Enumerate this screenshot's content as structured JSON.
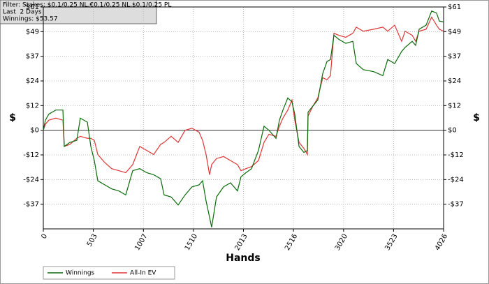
{
  "chart_data": {
    "type": "line",
    "annotations": [
      "Filter: Stakes: $0.1/0.25 NL,€0.1/0.25 NL,$0.1/0.25 PL",
      "Last  2 Days",
      "Winnings: $53.57"
    ],
    "xlabel": "Hands",
    "ylabel": "$",
    "x": [
      0,
      21,
      56,
      126,
      197,
      211,
      267,
      337,
      372,
      443,
      478,
      513,
      548,
      618,
      688,
      759,
      829,
      899,
      970,
      1040,
      1110,
      1180,
      1215,
      1286,
      1356,
      1426,
      1496,
      1567,
      1602,
      1637,
      1672,
      1693,
      1742,
      1813,
      1883,
      1953,
      1988,
      2038,
      2094,
      2164,
      2220,
      2269,
      2340,
      2375,
      2410,
      2459,
      2501,
      2529,
      2572,
      2621,
      2656,
      2663,
      2712,
      2761,
      2810,
      2853,
      2888,
      2923,
      2972,
      3042,
      3113,
      3148,
      3218,
      3323,
      3415,
      3464,
      3534,
      3604,
      3639,
      3710,
      3745,
      3780,
      3850,
      3906,
      3955,
      3983,
      4026
    ],
    "series": [
      {
        "name": "Winnings",
        "color": "#0a6a0a",
        "values": [
          0,
          5,
          8,
          10,
          10,
          -8,
          -6,
          -5,
          6,
          4,
          -8,
          -15,
          -25,
          -27,
          -29,
          -30,
          -32,
          -20,
          -19,
          -21,
          -22,
          -24,
          -32,
          -33,
          -37,
          -32,
          -28,
          -27,
          -25,
          -35,
          -43,
          -48,
          -33,
          -28,
          -26,
          -30,
          -23,
          -21,
          -19,
          -10,
          2,
          0,
          -4,
          5,
          10,
          16,
          14,
          8,
          -8,
          -11,
          -10,
          9,
          12,
          15,
          28,
          34,
          35,
          47,
          45,
          43,
          44,
          33,
          30,
          29,
          27,
          35,
          33,
          39,
          41,
          44,
          42,
          50,
          52,
          59,
          58,
          54,
          53.57
        ]
      },
      {
        "name": "All-In EV",
        "color": "#e03535",
        "values": [
          0,
          3,
          5,
          6,
          5,
          -8,
          -7,
          -4,
          -3,
          -4,
          -4,
          -5,
          -12,
          -16,
          -19,
          -20,
          -21,
          -17,
          -8,
          -10,
          -12,
          -7,
          -6,
          -3,
          -6,
          0,
          1,
          -1,
          -5,
          -12,
          -22,
          -17,
          -14,
          -13,
          -15,
          -17,
          -20,
          -19,
          -18,
          -15,
          -6,
          -2,
          -3,
          2,
          6,
          10,
          15,
          5,
          -6,
          -9,
          -12,
          7,
          12,
          16,
          26,
          25,
          27,
          48,
          47,
          46,
          48,
          51,
          49,
          50,
          51,
          49,
          52,
          44,
          49,
          47,
          44,
          49,
          50,
          56,
          52,
          50,
          49
        ]
      }
    ],
    "xlim": [
      0,
      4026
    ],
    "xticks": [
      0,
      503,
      1007,
      1510,
      2013,
      2516,
      3020,
      3523,
      4026
    ],
    "ylim": [
      -48.8,
      61
    ],
    "yticks": [
      {
        "value": -36.6,
        "label": "-$37"
      },
      {
        "value": -24.4,
        "label": "-$24"
      },
      {
        "value": -12.2,
        "label": "-$12"
      },
      {
        "value": 0,
        "label": "$0"
      },
      {
        "value": 12.2,
        "label": "$12"
      },
      {
        "value": 24.4,
        "label": "$24"
      },
      {
        "value": 36.6,
        "label": "$37"
      },
      {
        "value": 48.8,
        "label": "$49"
      },
      {
        "value": 61,
        "label": "$61"
      }
    ],
    "grid": true
  }
}
